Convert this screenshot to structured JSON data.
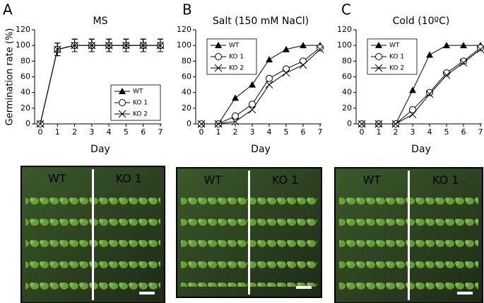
{
  "chart_data": [
    {
      "type": "line",
      "panel": "A",
      "title": "MS",
      "ylabel": "Germination rate (%)",
      "xlabel": "Day",
      "x": [
        0,
        1,
        2,
        3,
        4,
        5,
        6,
        7
      ],
      "xlim": [
        0,
        7
      ],
      "xticks": [
        0,
        1,
        2,
        3,
        4,
        5,
        6,
        7
      ],
      "ylim": [
        0,
        120
      ],
      "yticks": [
        0,
        20,
        40,
        60,
        80,
        100,
        120
      ],
      "legend": "lower right",
      "series": [
        {
          "name": "WT",
          "marker": "triangle",
          "color": "#000000",
          "values": [
            0,
            95,
            100,
            100,
            100,
            100,
            100,
            100
          ],
          "errors": [
            0,
            8,
            8,
            8,
            8,
            8,
            8,
            8
          ]
        },
        {
          "name": "KO 1",
          "marker": "circle",
          "color": "#000000",
          "values": [
            0,
            95,
            100,
            100,
            100,
            100,
            100,
            100
          ],
          "errors": [
            0,
            8,
            8,
            8,
            8,
            8,
            8,
            8
          ]
        },
        {
          "name": "KO 2",
          "marker": "cross",
          "color": "#000000",
          "values": [
            0,
            95,
            100,
            100,
            100,
            100,
            100,
            100
          ],
          "errors": [
            0,
            8,
            8,
            8,
            8,
            8,
            8,
            8
          ]
        }
      ]
    },
    {
      "type": "line",
      "panel": "B",
      "title": "Salt (150 mM NaCl)",
      "xlabel": "Day",
      "x": [
        0,
        1,
        2,
        3,
        4,
        5,
        6,
        7
      ],
      "xlim": [
        0,
        7
      ],
      "xticks": [
        0,
        1,
        2,
        3,
        4,
        5,
        6,
        7
      ],
      "ylim": [
        0,
        120
      ],
      "yticks": [
        0,
        20,
        40,
        60,
        80,
        100,
        120
      ],
      "legend": "upper left",
      "series": [
        {
          "name": "WT",
          "marker": "triangle",
          "color": "#000000",
          "values": [
            0,
            0,
            33,
            50,
            82,
            95,
            100,
            100
          ]
        },
        {
          "name": "KO 1",
          "marker": "circle",
          "color": "#000000",
          "values": [
            0,
            0,
            10,
            25,
            58,
            70,
            80,
            97
          ]
        },
        {
          "name": "KO 2",
          "marker": "cross",
          "color": "#000000",
          "values": [
            0,
            0,
            3,
            18,
            50,
            65,
            75,
            95
          ]
        }
      ]
    },
    {
      "type": "line",
      "panel": "C",
      "title": "Cold (10ºC)",
      "xlabel": "Day",
      "x": [
        0,
        1,
        2,
        3,
        4,
        5,
        6,
        7
      ],
      "xlim": [
        0,
        7
      ],
      "xticks": [
        0,
        1,
        2,
        3,
        4,
        5,
        6,
        7
      ],
      "ylim": [
        0,
        120
      ],
      "yticks": [
        0,
        20,
        40,
        60,
        80,
        100,
        120
      ],
      "legend": "upper left",
      "series": [
        {
          "name": "WT",
          "marker": "triangle",
          "color": "#000000",
          "values": [
            0,
            0,
            0,
            43,
            88,
            100,
            100,
            100
          ]
        },
        {
          "name": "KO 1",
          "marker": "circle",
          "color": "#000000",
          "values": [
            0,
            0,
            0,
            18,
            40,
            65,
            80,
            97
          ]
        },
        {
          "name": "KO 2",
          "marker": "cross",
          "color": "#000000",
          "values": [
            0,
            0,
            0,
            12,
            38,
            62,
            78,
            95
          ]
        }
      ]
    }
  ],
  "photos": [
    {
      "left": "WT",
      "right": "KO 1"
    },
    {
      "left": "WT",
      "right": "KO 1"
    },
    {
      "left": "WT",
      "right": "KO 1"
    }
  ]
}
